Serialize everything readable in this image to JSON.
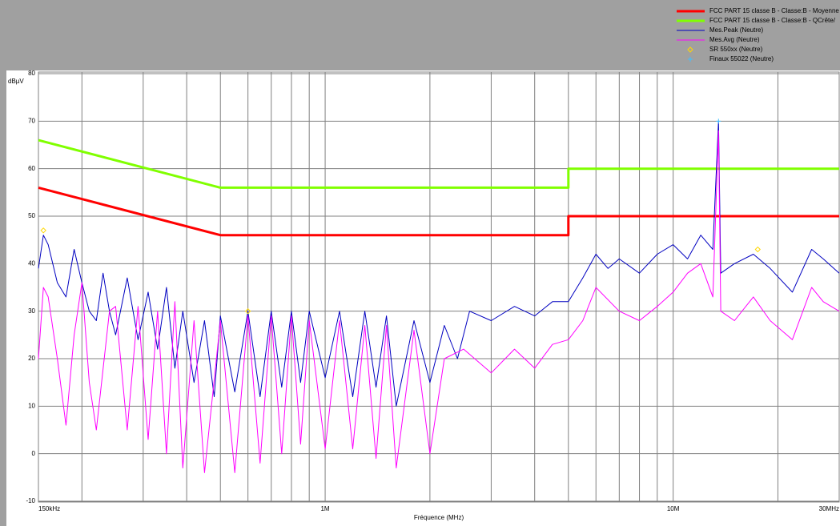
{
  "chart_data": {
    "type": "line",
    "x_label": "Fréquence (MHz)",
    "y_label": "dBµV",
    "xscale": "log",
    "xlim": [
      0.15,
      30
    ],
    "xticks": [
      {
        "value": 0.15,
        "label": "150kHz"
      },
      {
        "value": 1,
        "label": "1M"
      },
      {
        "value": 10,
        "label": "10M"
      },
      {
        "value": 30,
        "label": "30MHz"
      }
    ],
    "x_minor_ticks": [
      0.2,
      0.3,
      0.4,
      0.5,
      0.6,
      0.7,
      0.8,
      0.9,
      2,
      3,
      4,
      5,
      6,
      7,
      8,
      9,
      20
    ],
    "ylim": [
      -10,
      80
    ],
    "yticks": [
      -10,
      0,
      10,
      20,
      30,
      40,
      50,
      60,
      70,
      80
    ],
    "grid": true,
    "legend": "top-right",
    "series": [
      {
        "name": "FCC PART 15 classe B - Classe:B - Moyenne",
        "color": "#ff0000",
        "kind": "line",
        "width": 3,
        "x": [
          0.15,
          0.5,
          5,
          5,
          30
        ],
        "values": [
          56,
          46,
          46,
          50,
          50
        ]
      },
      {
        "name": "FCC PART 15 classe B - Classe:B - QCrête/",
        "color": "#80ff00",
        "kind": "line",
        "width": 3,
        "x": [
          0.15,
          0.5,
          5,
          5,
          30
        ],
        "values": [
          66,
          56,
          56,
          60,
          60
        ]
      },
      {
        "name": "Mes.Peak (Neutre)",
        "color": "#0000c0",
        "kind": "line",
        "width": 1,
        "x": [
          0.15,
          0.155,
          0.16,
          0.17,
          0.18,
          0.19,
          0.2,
          0.21,
          0.22,
          0.23,
          0.24,
          0.25,
          0.27,
          0.29,
          0.31,
          0.33,
          0.35,
          0.37,
          0.39,
          0.42,
          0.45,
          0.48,
          0.5,
          0.55,
          0.6,
          0.65,
          0.7,
          0.75,
          0.8,
          0.85,
          0.9,
          1.0,
          1.1,
          1.2,
          1.3,
          1.4,
          1.5,
          1.6,
          1.8,
          2.0,
          2.2,
          2.4,
          2.6,
          3.0,
          3.5,
          4.0,
          4.5,
          5.0,
          5.5,
          6.0,
          6.5,
          7,
          8,
          9,
          10,
          11,
          12,
          13,
          13.5,
          13.7,
          15,
          17,
          19,
          22,
          25,
          27,
          30
        ],
        "values": [
          39,
          46,
          44,
          36,
          33,
          43,
          36,
          30,
          28,
          38,
          30,
          25,
          37,
          24,
          34,
          22,
          35,
          18,
          30,
          15,
          28,
          12,
          29,
          13,
          30,
          12,
          30,
          14,
          30,
          15,
          30,
          16,
          30,
          12,
          30,
          14,
          29,
          10,
          28,
          15,
          27,
          20,
          30,
          28,
          31,
          29,
          32,
          32,
          37,
          42,
          39,
          41,
          38,
          42,
          44,
          41,
          46,
          43,
          70,
          38,
          40,
          42,
          39,
          34,
          43,
          41,
          38
        ]
      },
      {
        "name": "Mes.Avg (Neutre)",
        "color": "#ff00ff",
        "kind": "line",
        "width": 1,
        "x": [
          0.15,
          0.155,
          0.16,
          0.17,
          0.18,
          0.19,
          0.2,
          0.21,
          0.22,
          0.24,
          0.25,
          0.27,
          0.29,
          0.31,
          0.33,
          0.35,
          0.37,
          0.39,
          0.42,
          0.45,
          0.5,
          0.55,
          0.6,
          0.65,
          0.7,
          0.75,
          0.8,
          0.85,
          0.9,
          1.0,
          1.1,
          1.2,
          1.3,
          1.4,
          1.5,
          1.6,
          1.8,
          2.0,
          2.2,
          2.5,
          3,
          3.5,
          4,
          4.5,
          5,
          5.5,
          6,
          7,
          8,
          9,
          10,
          11,
          12,
          13,
          13.5,
          13.7,
          15,
          17,
          19,
          22,
          25,
          27,
          30
        ],
        "values": [
          20,
          35,
          33,
          20,
          6,
          25,
          36,
          15,
          5,
          30,
          31,
          5,
          31,
          3,
          30,
          0,
          32,
          -3,
          28,
          -4,
          28,
          -4,
          29,
          -2,
          29,
          0,
          29,
          2,
          28,
          1,
          28,
          1,
          27,
          -1,
          27,
          -3,
          26,
          0,
          20,
          22,
          17,
          22,
          18,
          23,
          24,
          28,
          35,
          30,
          28,
          31,
          34,
          38,
          40,
          33,
          68,
          30,
          28,
          33,
          28,
          24,
          35,
          32,
          30
        ]
      },
      {
        "name": "SR 550xx (Neutre)",
        "color": "#ffd700",
        "kind": "diamond",
        "x": [
          0.155,
          0.6,
          17.5
        ],
        "values": [
          47,
          30,
          43
        ]
      },
      {
        "name": "Finaux 55022 (Neutre)",
        "color": "#40c0ff",
        "kind": "cross",
        "x": [
          13.5
        ],
        "values": [
          70
        ]
      }
    ]
  }
}
